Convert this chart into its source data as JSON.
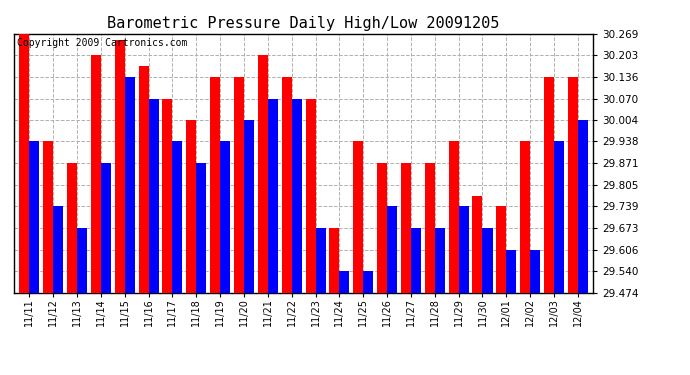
{
  "title": "Barometric Pressure Daily High/Low 20091205",
  "copyright": "Copyright 2009 Cartronics.com",
  "dates": [
    "11/11",
    "11/12",
    "11/13",
    "11/14",
    "11/15",
    "11/16",
    "11/17",
    "11/18",
    "11/19",
    "11/20",
    "11/21",
    "11/22",
    "11/23",
    "11/24",
    "11/25",
    "11/26",
    "11/27",
    "11/28",
    "11/29",
    "11/30",
    "12/01",
    "12/02",
    "12/03",
    "12/04"
  ],
  "highs": [
    30.269,
    29.938,
    29.871,
    30.203,
    30.25,
    30.17,
    30.07,
    30.004,
    30.136,
    30.136,
    30.203,
    30.136,
    30.07,
    29.673,
    29.938,
    29.871,
    29.871,
    29.871,
    29.938,
    29.771,
    29.739,
    29.938,
    30.136,
    30.136
  ],
  "lows": [
    29.938,
    29.739,
    29.673,
    29.871,
    30.136,
    30.07,
    29.938,
    29.871,
    29.938,
    30.004,
    30.07,
    30.07,
    29.673,
    29.54,
    29.54,
    29.739,
    29.673,
    29.673,
    29.739,
    29.673,
    29.606,
    29.606,
    29.938,
    30.004
  ],
  "ymin": 29.474,
  "ymax": 30.269,
  "yticks": [
    29.474,
    29.54,
    29.606,
    29.673,
    29.739,
    29.805,
    29.871,
    29.938,
    30.004,
    30.07,
    30.136,
    30.203,
    30.269
  ],
  "high_color": "#ff0000",
  "low_color": "#0000ff",
  "bg_color": "#ffffff",
  "grid_color": "#b0b0b0",
  "title_fontsize": 11,
  "copyright_fontsize": 7
}
